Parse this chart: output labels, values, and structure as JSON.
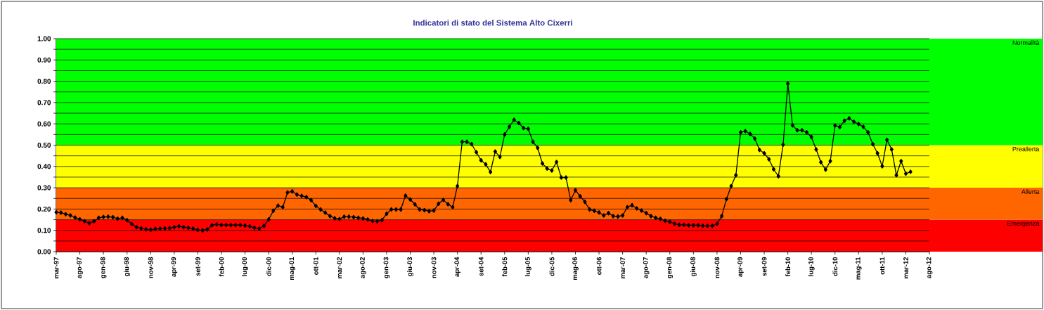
{
  "chart_data": {
    "type": "line",
    "title": "Indicatori di stato del Sistema Alto Cixerri",
    "x": [
      "1997-03",
      "1997-04",
      "1997-05",
      "1997-06",
      "1997-07",
      "1997-08",
      "1997-09",
      "1997-10",
      "1997-11",
      "1997-12",
      "1998-01",
      "1998-02",
      "1998-03",
      "1998-04",
      "1998-05",
      "1998-06",
      "1998-07",
      "1998-08",
      "1998-09",
      "1998-10",
      "1998-11",
      "1998-12",
      "1999-01",
      "1999-02",
      "1999-03",
      "1999-04",
      "1999-05",
      "1999-06",
      "1999-07",
      "1999-08",
      "1999-09",
      "1999-10",
      "1999-11",
      "1999-12",
      "2000-01",
      "2000-02",
      "2000-03",
      "2000-04",
      "2000-05",
      "2000-06",
      "2000-07",
      "2000-08",
      "2000-09",
      "2000-10",
      "2000-11",
      "2000-12",
      "2001-01",
      "2001-02",
      "2001-03",
      "2001-04",
      "2001-05",
      "2001-06",
      "2001-07",
      "2001-08",
      "2001-09",
      "2001-10",
      "2001-11",
      "2001-12",
      "2002-01",
      "2002-02",
      "2002-03",
      "2002-04",
      "2002-05",
      "2002-06",
      "2002-07",
      "2002-08",
      "2002-09",
      "2002-10",
      "2002-11",
      "2002-12",
      "2003-01",
      "2003-02",
      "2003-03",
      "2003-04",
      "2003-05",
      "2003-06",
      "2003-07",
      "2003-08",
      "2003-09",
      "2003-10",
      "2003-11",
      "2003-12",
      "2004-01",
      "2004-02",
      "2004-03",
      "2004-04",
      "2004-05",
      "2004-06",
      "2004-07",
      "2004-08",
      "2004-09",
      "2004-10",
      "2004-11",
      "2004-12",
      "2005-01",
      "2005-02",
      "2005-03",
      "2005-04",
      "2005-05",
      "2005-06",
      "2005-07",
      "2005-08",
      "2005-09",
      "2005-10",
      "2005-11",
      "2005-12",
      "2006-01",
      "2006-02",
      "2006-03",
      "2006-04",
      "2006-05",
      "2006-06",
      "2006-07",
      "2006-08",
      "2006-09",
      "2006-10",
      "2006-11",
      "2006-12",
      "2007-01",
      "2007-02",
      "2007-03",
      "2007-04",
      "2007-05",
      "2007-06",
      "2007-07",
      "2007-08",
      "2007-09",
      "2007-10",
      "2007-11",
      "2007-12",
      "2008-01",
      "2008-02",
      "2008-03",
      "2008-04",
      "2008-05",
      "2008-06",
      "2008-07",
      "2008-08",
      "2008-09",
      "2008-10",
      "2008-11",
      "2008-12",
      "2009-01",
      "2009-02",
      "2009-03",
      "2009-04",
      "2009-05",
      "2009-06",
      "2009-07",
      "2009-08",
      "2009-09",
      "2009-10",
      "2009-11",
      "2009-12",
      "2010-01",
      "2010-02",
      "2010-03",
      "2010-04",
      "2010-05",
      "2010-06",
      "2010-07",
      "2010-08",
      "2010-09",
      "2010-10",
      "2010-11",
      "2010-12",
      "2011-01",
      "2011-02",
      "2011-03",
      "2011-04",
      "2011-05",
      "2011-06",
      "2011-07",
      "2011-08",
      "2011-09",
      "2011-10",
      "2011-11",
      "2011-12",
      "2012-01",
      "2012-02",
      "2012-03",
      "2012-04"
    ],
    "series": [
      {
        "color": "#000000",
        "values": [
          0.185,
          0.183,
          0.176,
          0.17,
          0.16,
          0.152,
          0.143,
          0.133,
          0.143,
          0.159,
          0.163,
          0.164,
          0.162,
          0.155,
          0.159,
          0.148,
          0.13,
          0.115,
          0.109,
          0.105,
          0.102,
          0.107,
          0.108,
          0.109,
          0.11,
          0.115,
          0.119,
          0.115,
          0.112,
          0.108,
          0.102,
          0.1,
          0.104,
          0.124,
          0.128,
          0.125,
          0.125,
          0.125,
          0.125,
          0.125,
          0.122,
          0.119,
          0.112,
          0.108,
          0.121,
          0.151,
          0.192,
          0.216,
          0.209,
          0.278,
          0.283,
          0.268,
          0.262,
          0.256,
          0.242,
          0.215,
          0.198,
          0.183,
          0.167,
          0.157,
          0.153,
          0.164,
          0.164,
          0.162,
          0.159,
          0.156,
          0.151,
          0.144,
          0.143,
          0.148,
          0.178,
          0.198,
          0.198,
          0.198,
          0.263,
          0.245,
          0.222,
          0.198,
          0.195,
          0.19,
          0.193,
          0.225,
          0.243,
          0.223,
          0.209,
          0.308,
          0.516,
          0.516,
          0.505,
          0.467,
          0.429,
          0.41,
          0.374,
          0.47,
          0.445,
          0.55,
          0.586,
          0.619,
          0.604,
          0.58,
          0.577,
          0.516,
          0.487,
          0.414,
          0.39,
          0.381,
          0.421,
          0.348,
          0.348,
          0.242,
          0.288,
          0.26,
          0.234,
          0.198,
          0.192,
          0.184,
          0.17,
          0.181,
          0.167,
          0.165,
          0.17,
          0.209,
          0.218,
          0.203,
          0.193,
          0.181,
          0.167,
          0.159,
          0.154,
          0.145,
          0.14,
          0.131,
          0.126,
          0.126,
          0.124,
          0.124,
          0.124,
          0.121,
          0.121,
          0.121,
          0.131,
          0.167,
          0.247,
          0.308,
          0.359,
          0.56,
          0.566,
          0.553,
          0.531,
          0.478,
          0.462,
          0.434,
          0.387,
          0.354,
          0.502,
          0.789,
          0.593,
          0.57,
          0.57,
          0.56,
          0.538,
          0.48,
          0.42,
          0.385,
          0.425,
          0.592,
          0.585,
          0.615,
          0.626,
          0.61,
          0.599,
          0.586,
          0.56,
          0.505,
          0.462,
          0.401,
          0.525,
          0.48,
          0.359,
          0.425,
          0.366,
          0.375
        ]
      }
    ],
    "xlim": [
      "1997-03",
      "2012-08"
    ],
    "xticks": [
      {
        "value": "1997-03",
        "label": "mar-97"
      },
      {
        "value": "1997-08",
        "label": "ago-97"
      },
      {
        "value": "1998-01",
        "label": "gen-98"
      },
      {
        "value": "1998-06",
        "label": "giu-98"
      },
      {
        "value": "1998-11",
        "label": "nov-98"
      },
      {
        "value": "1999-04",
        "label": "apr-99"
      },
      {
        "value": "1999-09",
        "label": "set-99"
      },
      {
        "value": "2000-02",
        "label": "feb-00"
      },
      {
        "value": "2000-07",
        "label": "lug-00"
      },
      {
        "value": "2000-12",
        "label": "dic-00"
      },
      {
        "value": "2001-05",
        "label": "mag-01"
      },
      {
        "value": "2001-10",
        "label": "ott-01"
      },
      {
        "value": "2002-03",
        "label": "mar-02"
      },
      {
        "value": "2002-08",
        "label": "ago-02"
      },
      {
        "value": "2003-01",
        "label": "gen-03"
      },
      {
        "value": "2003-06",
        "label": "giu-03"
      },
      {
        "value": "2003-11",
        "label": "nov-03"
      },
      {
        "value": "2004-04",
        "label": "apr-04"
      },
      {
        "value": "2004-09",
        "label": "set-04"
      },
      {
        "value": "2005-02",
        "label": "feb-05"
      },
      {
        "value": "2005-07",
        "label": "lug-05"
      },
      {
        "value": "2005-12",
        "label": "dic-05"
      },
      {
        "value": "2006-05",
        "label": "mag-06"
      },
      {
        "value": "2006-10",
        "label": "ott-06"
      },
      {
        "value": "2007-03",
        "label": "mar-07"
      },
      {
        "value": "2007-08",
        "label": "ago-07"
      },
      {
        "value": "2008-01",
        "label": "gen-08"
      },
      {
        "value": "2008-06",
        "label": "giu-08"
      },
      {
        "value": "2008-11",
        "label": "nov-08"
      },
      {
        "value": "2009-04",
        "label": "apr-09"
      },
      {
        "value": "2009-09",
        "label": "set-09"
      },
      {
        "value": "2010-02",
        "label": "feb-10"
      },
      {
        "value": "2010-07",
        "label": "lug-10"
      },
      {
        "value": "2010-12",
        "label": "dic-10"
      },
      {
        "value": "2011-05",
        "label": "mag-11"
      },
      {
        "value": "2011-10",
        "label": "ott-11"
      },
      {
        "value": "2012-03",
        "label": "mar-12"
      },
      {
        "value": "2012-08",
        "label": "ago-12"
      }
    ],
    "ylim": [
      0,
      1
    ],
    "yticks": [
      {
        "value": 0,
        "label": "0.00"
      },
      {
        "value": 0.05,
        "label": null
      },
      {
        "value": 0.1,
        "label": "0.10"
      },
      {
        "value": 0.15,
        "label": null
      },
      {
        "value": 0.2,
        "label": "0.20"
      },
      {
        "value": 0.25,
        "label": null
      },
      {
        "value": 0.3,
        "label": "0.30"
      },
      {
        "value": 0.35,
        "label": null
      },
      {
        "value": 0.4,
        "label": "0.40"
      },
      {
        "value": 0.45,
        "label": null
      },
      {
        "value": 0.5,
        "label": "0.50"
      },
      {
        "value": 0.55,
        "label": null
      },
      {
        "value": 0.6,
        "label": "0.60"
      },
      {
        "value": 0.65,
        "label": null
      },
      {
        "value": 0.7,
        "label": "0.70"
      },
      {
        "value": 0.75,
        "label": null
      },
      {
        "value": 0.8,
        "label": "0.80"
      },
      {
        "value": 0.85,
        "label": null
      },
      {
        "value": 0.9,
        "label": "0.90"
      },
      {
        "value": 0.95,
        "label": null
      },
      {
        "value": 1,
        "label": "1.00"
      }
    ],
    "bands": [
      {
        "axis": "y",
        "from": 0,
        "to": 0.15,
        "label": "Emergenza",
        "color": "#ff0000"
      },
      {
        "axis": "y",
        "from": 0.15,
        "to": 0.3,
        "label": "Allerta",
        "color": "#ff6600"
      },
      {
        "axis": "y",
        "from": 0.3,
        "to": 0.5,
        "label": "Preallerta",
        "color": "#ffff00"
      },
      {
        "axis": "y",
        "from": 0.5,
        "to": 1,
        "label": "Normalità",
        "color": "#00ff00"
      }
    ],
    "grid": "y",
    "marker": "diamond",
    "line_style": "solid"
  }
}
